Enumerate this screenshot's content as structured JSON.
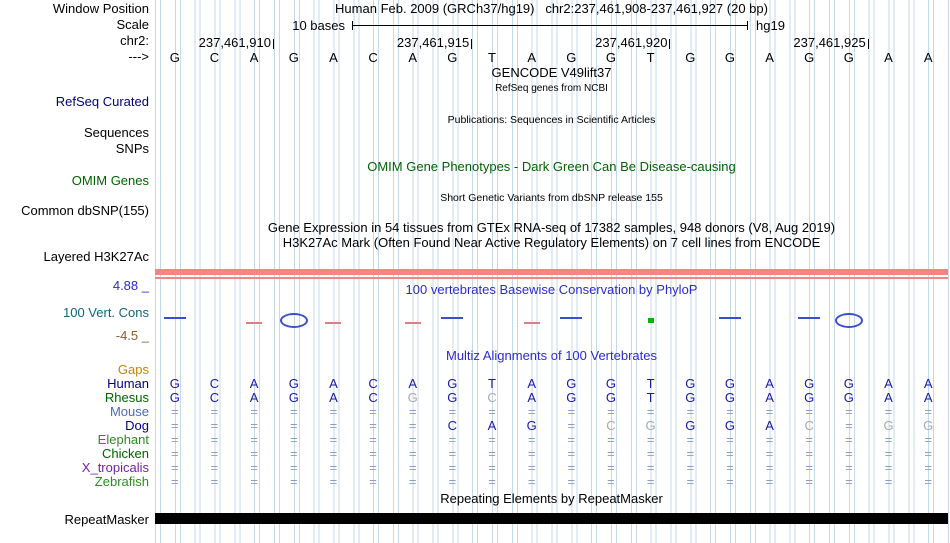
{
  "header": {
    "window_position_label": "Window Position",
    "title": "Human Feb. 2009 (GRCh37/hg19)   chr2:237,461,908-237,461,927 (20 bp)",
    "scale_row_label": "Scale",
    "scale_label": "10 bases",
    "assembly": "hg19",
    "chrom_label": "chr2:",
    "strand_label": "--->",
    "coordinates": [
      {
        "label": "237,461,910",
        "base_index": 2
      },
      {
        "label": "237,461,915",
        "base_index": 7
      },
      {
        "label": "237,461,920",
        "base_index": 12
      },
      {
        "label": "237,461,925",
        "base_index": 17
      }
    ],
    "sequence": [
      "G",
      "C",
      "A",
      "G",
      "A",
      "C",
      "A",
      "G",
      "T",
      "A",
      "G",
      "G",
      "T",
      "G",
      "G",
      "A",
      "G",
      "G",
      "A",
      "A"
    ]
  },
  "tracks": {
    "gencode": {
      "title": "GENCODE V49lift37",
      "subtitle": "RefSeq genes from NCBI",
      "left_label": "RefSeq Curated"
    },
    "publications": {
      "title": "Publications: Sequences in Scientific Articles",
      "left_labels": [
        "Sequences",
        "SNPs"
      ]
    },
    "omim": {
      "title": "OMIM Gene Phenotypes - Dark Green Can Be Disease-causing",
      "left_label": "OMIM Genes"
    },
    "dbsnp": {
      "title": "Short Genetic Variants from dbSNP release 155",
      "left_label": "Common dbSNP(155)"
    },
    "gtex": {
      "title": "Gene Expression in 54 tissues from GTEx RNA-seq of 17382 samples, 948 donors (V8, Aug 2019)"
    },
    "h3k27ac": {
      "title": "H3K27Ac Mark (Often Found Near Active Regulatory Elements) on 7 cell lines from ENCODE",
      "left_label": "Layered H3K27Ac"
    },
    "conservation": {
      "title": "100 vertebrates Basewise Conservation by PhyloP",
      "left_label": "100 Vert. Cons",
      "max": "4.88 _",
      "min": "-4.5 _",
      "marks": [
        {
          "col": 1,
          "type": "pos"
        },
        {
          "col": 3,
          "type": "neg"
        },
        {
          "col": 4,
          "type": "loop"
        },
        {
          "col": 5,
          "type": "neg"
        },
        {
          "col": 7,
          "type": "neg"
        },
        {
          "col": 8,
          "type": "pos"
        },
        {
          "col": 10,
          "type": "neg"
        },
        {
          "col": 11,
          "type": "pos"
        },
        {
          "col": 13,
          "type": "dot"
        },
        {
          "col": 15,
          "type": "pos"
        },
        {
          "col": 17,
          "type": "pos"
        },
        {
          "col": 18,
          "type": "loop"
        }
      ]
    },
    "multiz": {
      "title": "Multiz Alignments of 100 Vertebrates",
      "rows": [
        {
          "name": "Gaps",
          "color": "#c8820a",
          "cells": [
            "",
            "",
            "",
            "",
            "",
            "",
            "",
            "",
            "",
            "",
            "",
            "",
            "",
            "",
            "",
            "",
            "",
            "",
            "",
            ""
          ],
          "dim": []
        },
        {
          "name": "Human",
          "color": "#000080",
          "cells": [
            "G",
            "C",
            "A",
            "G",
            "A",
            "C",
            "A",
            "G",
            "T",
            "A",
            "G",
            "G",
            "T",
            "G",
            "G",
            "A",
            "G",
            "G",
            "A",
            "A"
          ],
          "dim": []
        },
        {
          "name": "Rhesus",
          "color": "#006400",
          "cells": [
            "G",
            "C",
            "A",
            "G",
            "A",
            "C",
            "G",
            "G",
            "C",
            "A",
            "G",
            "G",
            "T",
            "G",
            "G",
            "A",
            "G",
            "G",
            "A",
            "A"
          ],
          "dim": [
            6,
            8
          ]
        },
        {
          "name": "Mouse",
          "color": "#4a69bd",
          "cells": [
            "=",
            "=",
            "=",
            "=",
            "=",
            "=",
            "=",
            "=",
            "=",
            "=",
            "=",
            "=",
            "=",
            "=",
            "=",
            "=",
            "=",
            "=",
            "=",
            "="
          ],
          "dim": []
        },
        {
          "name": "Dog",
          "color": "#000080",
          "cells": [
            "=",
            "=",
            "=",
            "=",
            "=",
            "=",
            "=",
            "C",
            "A",
            "G",
            "=",
            "C",
            "G",
            "G",
            "G",
            "A",
            "C",
            "=",
            "G",
            "G"
          ],
          "dim": [
            11,
            12,
            16,
            18,
            19
          ]
        },
        {
          "name": "Elephant",
          "color": "#2e8b22",
          "cells": [
            "=",
            "=",
            "=",
            "=",
            "=",
            "=",
            "=",
            "=",
            "=",
            "=",
            "=",
            "=",
            "=",
            "=",
            "=",
            "=",
            "=",
            "=",
            "=",
            "="
          ],
          "dim": []
        },
        {
          "name": "Chicken",
          "color": "#006400",
          "cells": [
            "=",
            "=",
            "=",
            "=",
            "=",
            "=",
            "=",
            "=",
            "=",
            "=",
            "=",
            "=",
            "=",
            "=",
            "=",
            "=",
            "=",
            "=",
            "=",
            "="
          ],
          "dim": []
        },
        {
          "name": "X_tropicalis",
          "color": "#7b1fa2",
          "cells": [
            "=",
            "=",
            "=",
            "=",
            "=",
            "=",
            "=",
            "=",
            "=",
            "=",
            "=",
            "=",
            "=",
            "=",
            "=",
            "=",
            "=",
            "=",
            "=",
            "="
          ],
          "dim": []
        },
        {
          "name": "Zebrafish",
          "color": "#2e8b22",
          "cells": [
            "=",
            "=",
            "=",
            "=",
            "=",
            "=",
            "=",
            "=",
            "=",
            "=",
            "=",
            "=",
            "=",
            "=",
            "=",
            "=",
            "=",
            "=",
            "=",
            "="
          ],
          "dim": []
        }
      ]
    },
    "repeatmasker": {
      "title": "Repeating Elements by RepeatMasker",
      "left_label": "RepeatMasker"
    }
  },
  "colors": {
    "title_blue": "#2b2bcc",
    "omim_green": "#006400",
    "navy_label": "#000080",
    "cons_max_blue": "#2b2bcc",
    "cons_min_brown": "#8a5a2b",
    "cons_name": "#11647e",
    "h3k27ac_bar": "#f9837e",
    "repeat_bar": "#000000",
    "letter_blue": "#1a1aa6",
    "equals_gray": "#8c9cc4",
    "dim_gray": "#a9a9a9",
    "cons_pos": "#3a4fd0",
    "cons_neg": "#d98080",
    "cons_dot": "#00b400",
    "gridline": "#c5d9ee"
  }
}
